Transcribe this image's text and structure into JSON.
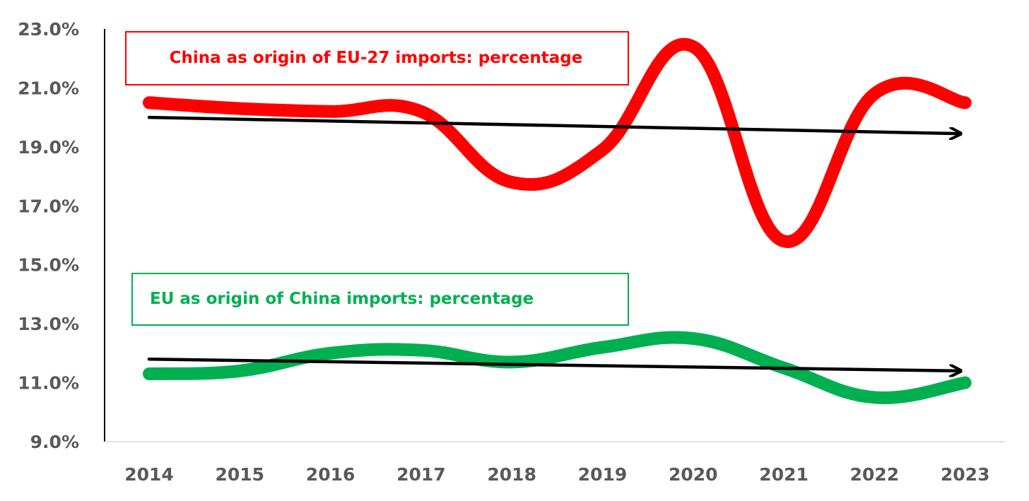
{
  "chart_data": {
    "type": "line",
    "title": "",
    "xlabel": "",
    "ylabel": "",
    "x": [
      "2014",
      "2015",
      "2016",
      "2017",
      "2018",
      "2019",
      "2020",
      "2021",
      "2022",
      "2023"
    ],
    "y_ticks": [
      "9.0%",
      "11.0%",
      "13.0%",
      "15.0%",
      "17.0%",
      "19.0%",
      "21.0%",
      "23.0%"
    ],
    "ylim": [
      9.0,
      23.0
    ],
    "grid": false,
    "series": [
      {
        "name": "China as origin of EU-27 imports: percentage",
        "color": "#ff0000",
        "values": [
          20.5,
          20.3,
          20.2,
          20.2,
          17.8,
          18.9,
          22.4,
          15.8,
          20.8,
          20.5
        ],
        "trend": [
          20.0,
          19.45
        ]
      },
      {
        "name": "EU as origin of China imports: percentage",
        "color": "#00b050",
        "values": [
          11.3,
          11.4,
          12.0,
          12.1,
          11.7,
          12.2,
          12.5,
          11.5,
          10.5,
          11.0
        ],
        "trend": [
          11.8,
          11.4
        ]
      }
    ],
    "trend_color": "#000000"
  }
}
